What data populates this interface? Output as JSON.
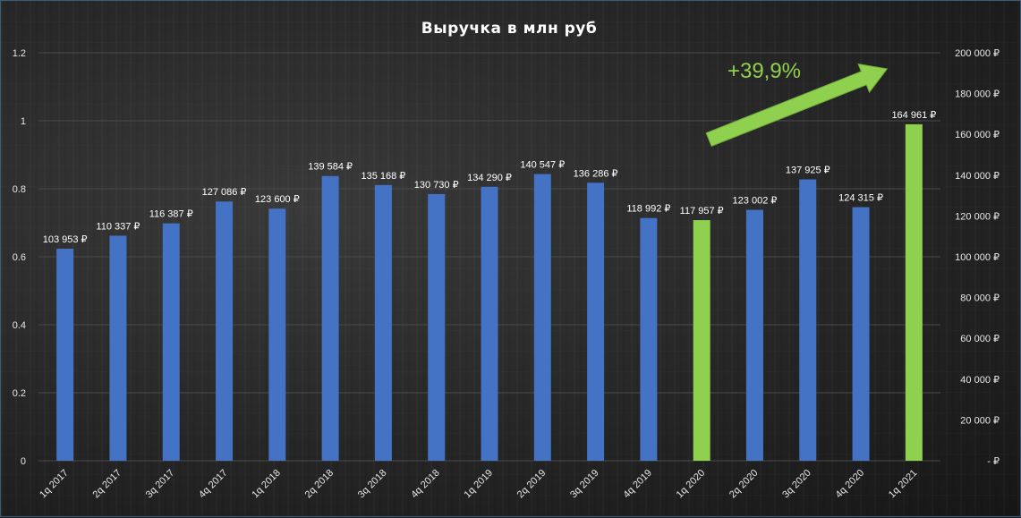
{
  "chart_data": {
    "type": "bar",
    "title": "Выручка в млн руб",
    "categories": [
      "1q 2017",
      "2q 2017",
      "3q 2017",
      "4q 2017",
      "1q 2018",
      "2q 2018",
      "3q 2018",
      "4q 2018",
      "1q 2019",
      "2q 2019",
      "3q 2019",
      "4q 2019",
      "1q 2020",
      "2q 2020",
      "3q 2020",
      "4q 2020",
      "1q 2021"
    ],
    "values": [
      103953,
      110337,
      116387,
      127086,
      123600,
      139584,
      135168,
      130730,
      134290,
      140547,
      136286,
      118992,
      117957,
      123002,
      137925,
      124315,
      164961
    ],
    "data_labels": [
      "103 953 ₽",
      "110 337 ₽",
      "116 387 ₽",
      "127 086 ₽",
      "123 600 ₽",
      "139 584 ₽",
      "135 168 ₽",
      "130 730 ₽",
      "134 290 ₽",
      "140 547 ₽",
      "136 286 ₽",
      "118 992 ₽",
      "117 957 ₽",
      "123 002 ₽",
      "137 925 ₽",
      "124 315 ₽",
      "164 961 ₽"
    ],
    "highlighted_categories": [
      "1q 2020",
      "1q 2021"
    ],
    "colors": {
      "bar": "#4472c4",
      "bar_highlight": "#8fd14f",
      "text": "#ffffff",
      "grid": "#4a4a4a"
    },
    "left_axis": {
      "ylim": [
        0,
        1.2
      ],
      "ticks": [
        0,
        0.2,
        0.4,
        0.6,
        0.8,
        1,
        1.2
      ],
      "tick_labels": [
        "0",
        "0.2",
        "0.4",
        "0.6",
        "0.8",
        "1",
        "1.2"
      ]
    },
    "right_axis": {
      "ylim": [
        0,
        200000
      ],
      "ticks": [
        0,
        20000,
        40000,
        60000,
        80000,
        100000,
        120000,
        140000,
        160000,
        180000,
        200000
      ],
      "tick_labels": [
        "-   ₽",
        "20 000 ₽",
        "40 000 ₽",
        "60 000 ₽",
        "80 000 ₽",
        "100 000 ₽",
        "120 000 ₽",
        "140 000 ₽",
        "160 000 ₽",
        "180 000 ₽",
        "200 000 ₽"
      ]
    },
    "grid": true,
    "legend": "none",
    "annotation": {
      "text": "+39,9%",
      "from": "1q 2020",
      "to": "1q 2021",
      "shape": "arrow"
    }
  }
}
